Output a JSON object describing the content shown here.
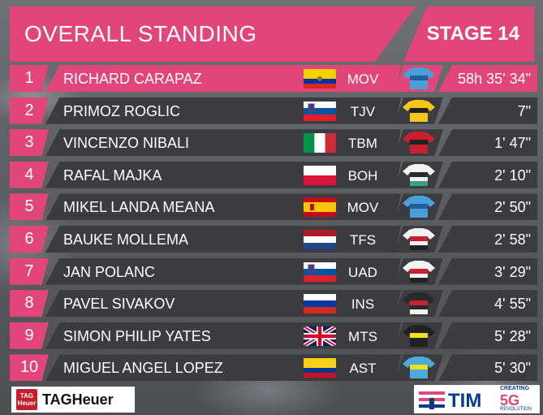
{
  "header": {
    "title": "OVERALL STANDING",
    "stage": "STAGE 14"
  },
  "standings": [
    {
      "pos": "1",
      "rider": "RICHARD CARAPAZ",
      "flag": "ecuador",
      "team": "MOV",
      "jersey": "movistar-jersey",
      "time": "58h 35' 34\""
    },
    {
      "pos": "2",
      "rider": "PRIMOZ ROGLIC",
      "flag": "slovenia",
      "team": "TJV",
      "jersey": "jumbo-visma-jersey",
      "time": "7\""
    },
    {
      "pos": "3",
      "rider": "VINCENZO NIBALI",
      "flag": "italy",
      "team": "TBM",
      "jersey": "bahrain-merida-jersey",
      "time": "1' 47\""
    },
    {
      "pos": "4",
      "rider": "RAFAL MAJKA",
      "flag": "poland",
      "team": "BOH",
      "jersey": "bora-hansgrohe-jersey",
      "time": "2' 10\""
    },
    {
      "pos": "5",
      "rider": "MIKEL LANDA MEANA",
      "flag": "spain",
      "team": "MOV",
      "jersey": "movistar-jersey",
      "time": "2' 50\""
    },
    {
      "pos": "6",
      "rider": "BAUKE MOLLEMA",
      "flag": "netherlands",
      "team": "TFS",
      "jersey": "trek-segafredo-jersey",
      "time": "2' 58\""
    },
    {
      "pos": "7",
      "rider": "JAN POLANC",
      "flag": "slovenia",
      "team": "UAD",
      "jersey": "uae-jersey",
      "time": "3' 29\""
    },
    {
      "pos": "8",
      "rider": "PAVEL SIVAKOV",
      "flag": "russia",
      "team": "INS",
      "jersey": "ineos-jersey",
      "time": "4' 55\""
    },
    {
      "pos": "9",
      "rider": "SIMON PHILIP YATES",
      "flag": "united-kingdom",
      "team": "MTS",
      "jersey": "mitchelton-scott-jersey",
      "time": "5' 28\""
    },
    {
      "pos": "10",
      "rider": "MIGUEL ANGEL LOPEZ",
      "flag": "colombia",
      "team": "AST",
      "jersey": "astana-jersey",
      "time": "5' 30\""
    }
  ],
  "sponsors": {
    "tag": {
      "word": "TAGHeuer",
      "mark": "TAG Heuer"
    },
    "tim": {
      "word": "TIM",
      "creating": "CREATING",
      "fiveg": "5G",
      "revolution": "REVOLUTION"
    }
  },
  "colors": {
    "accent": "#e2457a",
    "row": "#3b3b40"
  }
}
